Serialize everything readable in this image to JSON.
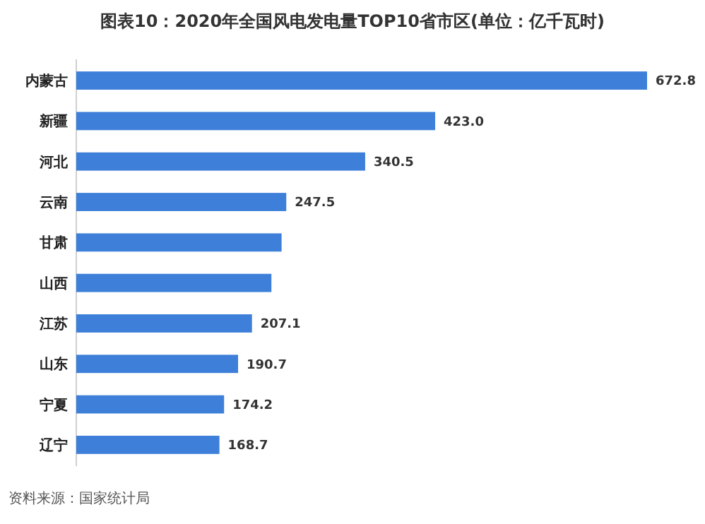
{
  "chart_data": {
    "type": "bar",
    "orientation": "horizontal",
    "title": "图表10：2020年全国风电发电量TOP10省市区(单位：亿千瓦时)",
    "categories": [
      "内蒙古",
      "新疆",
      "河北",
      "云南",
      "甘肃",
      "山西",
      "江苏",
      "山东",
      "宁夏",
      "辽宁"
    ],
    "values": [
      672.8,
      423.0,
      340.5,
      247.5,
      242,
      230,
      207.1,
      190.7,
      174.2,
      168.7
    ],
    "value_labels": [
      "672.8",
      "423.0",
      "340.5",
      "247.5",
      null,
      null,
      "207.1",
      "190.7",
      "174.2",
      "168.7"
    ],
    "color": "#3d7fd9",
    "annotations": [
      "资料来源：国家统计局"
    ]
  }
}
